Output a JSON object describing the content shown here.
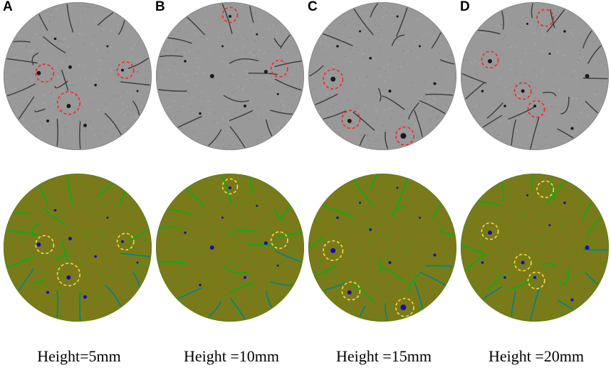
{
  "panels": [
    {
      "letter": "A",
      "caption": "Height=5mm",
      "pores": [
        [
          0.24,
          0.48,
          3
        ],
        [
          0.45,
          0.44,
          2.5
        ],
        [
          0.8,
          0.46,
          2
        ],
        [
          0.44,
          0.7,
          3
        ],
        [
          0.62,
          0.56,
          1.8
        ],
        [
          0.3,
          0.8,
          2
        ],
        [
          0.55,
          0.83,
          2.5
        ],
        [
          0.7,
          0.3,
          1.5
        ],
        [
          0.35,
          0.25,
          1.8
        ],
        [
          0.9,
          0.6,
          1.5
        ]
      ],
      "highlights": [
        [
          0.28,
          0.48,
          0.06
        ],
        [
          0.44,
          0.68,
          0.075
        ],
        [
          0.82,
          0.46,
          0.055
        ]
      ]
    },
    {
      "letter": "B",
      "caption": "Height =10mm",
      "pores": [
        [
          0.5,
          0.1,
          2
        ],
        [
          0.38,
          0.5,
          3
        ],
        [
          0.74,
          0.47,
          2.5
        ],
        [
          0.2,
          0.4,
          1.8
        ],
        [
          0.6,
          0.7,
          2
        ],
        [
          0.3,
          0.75,
          1.8
        ],
        [
          0.82,
          0.62,
          1.5
        ],
        [
          0.45,
          0.3,
          1.5
        ],
        [
          0.68,
          0.22,
          1.5
        ]
      ],
      "highlights": [
        [
          0.5,
          0.09,
          0.05
        ],
        [
          0.83,
          0.45,
          0.055
        ]
      ]
    },
    {
      "letter": "C",
      "caption": "Height =15mm",
      "pores": [
        [
          0.17,
          0.52,
          3.5
        ],
        [
          0.28,
          0.8,
          3
        ],
        [
          0.64,
          0.9,
          4
        ],
        [
          0.42,
          0.38,
          1.8
        ],
        [
          0.75,
          0.3,
          1.5
        ],
        [
          0.55,
          0.6,
          2
        ],
        [
          0.35,
          0.2,
          1.5
        ],
        [
          0.85,
          0.55,
          2
        ],
        [
          0.6,
          0.1,
          1.5
        ],
        [
          0.2,
          0.3,
          1.8
        ]
      ],
      "highlights": [
        [
          0.17,
          0.52,
          0.065
        ],
        [
          0.29,
          0.79,
          0.06
        ],
        [
          0.65,
          0.9,
          0.06
        ]
      ]
    },
    {
      "letter": "D",
      "caption": "Height =20mm",
      "pores": [
        [
          0.2,
          0.4,
          3
        ],
        [
          0.42,
          0.6,
          2.5
        ],
        [
          0.5,
          0.7,
          2
        ],
        [
          0.85,
          0.5,
          3
        ],
        [
          0.75,
          0.85,
          2
        ],
        [
          0.3,
          0.7,
          1.8
        ],
        [
          0.6,
          0.35,
          1.5
        ],
        [
          0.15,
          0.6,
          1.8
        ],
        [
          0.45,
          0.15,
          1.5
        ],
        [
          0.7,
          0.2,
          1.8
        ]
      ],
      "highlights": [
        [
          0.2,
          0.39,
          0.055
        ],
        [
          0.42,
          0.6,
          0.055
        ],
        [
          0.51,
          0.72,
          0.055
        ],
        [
          0.57,
          0.11,
          0.055
        ]
      ]
    }
  ],
  "colors": {
    "ct_gray": "#999999",
    "ct_edge": "#8a8a8a",
    "crack_dark": "#2a2a2a",
    "pore_dark": "#1a1a1a",
    "highlight_red": "#ff2222",
    "map_base": "#7b7a1a",
    "map_green": "#17a817",
    "map_crack": "#1565c0",
    "map_pore": "#1010b0",
    "highlight_yellow": "#f0e040"
  }
}
